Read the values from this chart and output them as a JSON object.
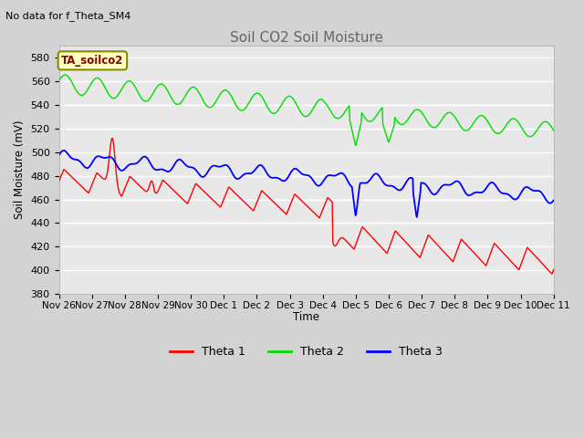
{
  "title": "Soil CO2 Soil Moisture",
  "subtitle": "No data for f_Theta_SM4",
  "ylabel": "Soil Moisture (mV)",
  "xlabel": "Time",
  "ylim": [
    380,
    590
  ],
  "yticks": [
    380,
    400,
    420,
    440,
    460,
    480,
    500,
    520,
    540,
    560,
    580
  ],
  "xtick_labels": [
    "Nov 26",
    "Nov 27",
    "Nov 28",
    "Nov 29",
    "Nov 30",
    "Dec 1",
    "Dec 2",
    "Dec 3",
    "Dec 4",
    "Dec 5",
    "Dec 6",
    "Dec 7",
    "Dec 8",
    "Dec 9",
    "Dec 10",
    "Dec 11"
  ],
  "plot_bg_color": "#e8e8e8",
  "fig_bg_color": "#d3d3d3",
  "legend_label": "TA_soilco2",
  "line_colors": {
    "theta1": "#ff0000",
    "theta2": "#00dd00",
    "theta3": "#0000ff"
  },
  "legend_items": [
    "Theta 1",
    "Theta 2",
    "Theta 3"
  ],
  "n_points": 960
}
